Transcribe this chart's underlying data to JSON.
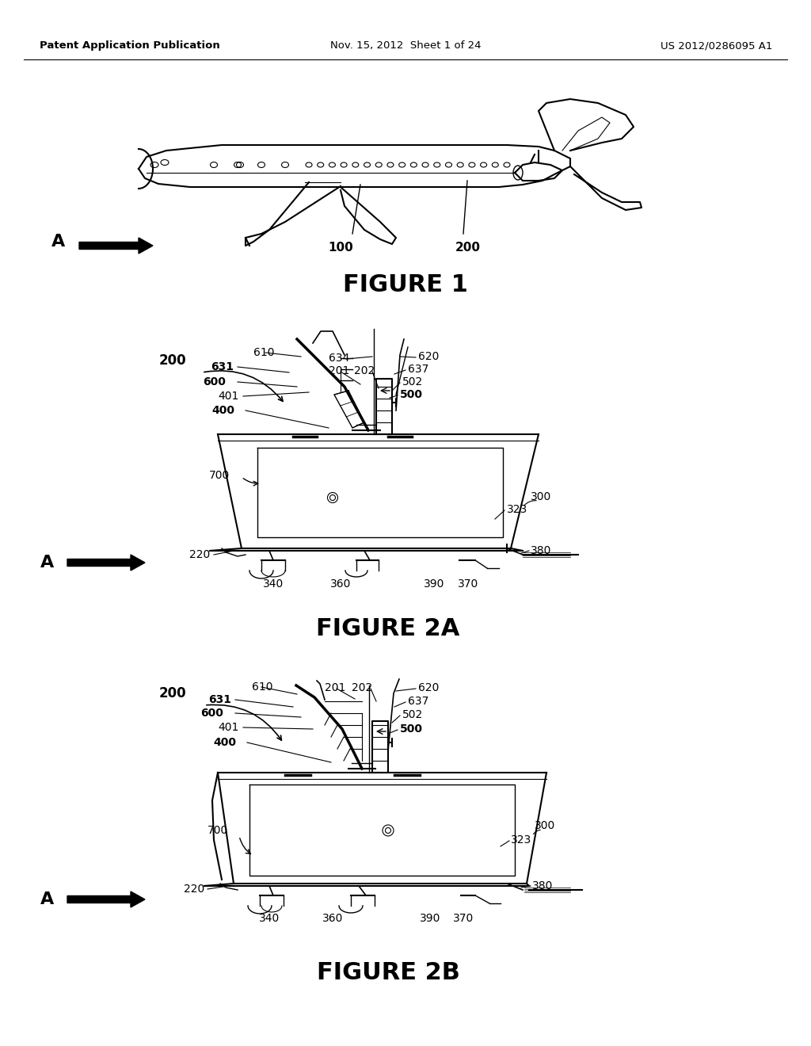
{
  "bg": "#ffffff",
  "header_left": "Patent Application Publication",
  "header_center": "Nov. 15, 2012  Sheet 1 of 24",
  "header_right": "US 2012/0286095 A1"
}
